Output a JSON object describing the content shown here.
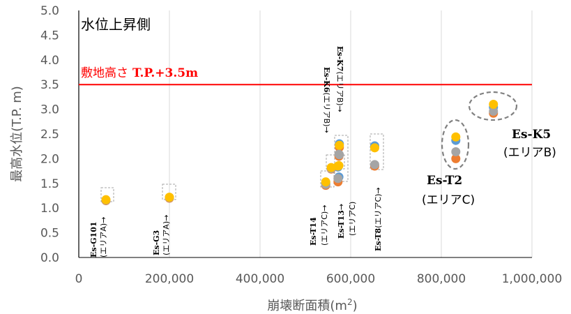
{
  "chart_data": {
    "type": "scatter",
    "panel_label": "水位上昇側",
    "xlabel": "崩壊断面積(m",
    "xlabel_sup": "2",
    "xlabel_tail": ")",
    "ylabel": "最高水位(T.P. m)",
    "xlim": [
      0,
      1000000
    ],
    "ylim": [
      0,
      5
    ],
    "x_ticks": [
      "0",
      "200,000",
      "400,000",
      "600,000",
      "800,000",
      "1,000,000"
    ],
    "y_ticks": [
      "0.0",
      "0.5",
      "1.0",
      "1.5",
      "2.0",
      "2.5",
      "3.0",
      "3.5",
      "4.0",
      "4.5",
      "5.0"
    ],
    "grid": "vertical",
    "reference_line": {
      "y": 3.5,
      "label_jp": "敷地高さ",
      "label_value": "T.P.+3.5m",
      "color": "#ff0000"
    },
    "series": [
      {
        "color": "#5b9bd5",
        "points": [
          [
            60000,
            1.16
          ],
          [
            200000,
            1.21
          ],
          [
            545000,
            1.5
          ],
          [
            557000,
            1.8
          ],
          [
            572000,
            1.83
          ],
          [
            575000,
            2.3
          ],
          [
            574000,
            1.63
          ],
          [
            653000,
            2.26
          ],
          [
            832000,
            2.37
          ],
          [
            915000,
            3.04
          ]
        ]
      },
      {
        "color": "#ed7d31",
        "points": [
          [
            60000,
            1.15
          ],
          [
            200000,
            1.2
          ],
          [
            545000,
            1.46
          ],
          [
            557000,
            1.79
          ],
          [
            572000,
            1.53
          ],
          [
            575000,
            2.23
          ],
          [
            574000,
            2.05
          ],
          [
            653000,
            1.85
          ],
          [
            832000,
            2.0
          ],
          [
            915000,
            2.92
          ]
        ]
      },
      {
        "color": "#a5a5a5",
        "points": [
          [
            60000,
            1.16
          ],
          [
            200000,
            1.21
          ],
          [
            545000,
            1.48
          ],
          [
            557000,
            1.8
          ],
          [
            572000,
            1.6
          ],
          [
            575000,
            2.08
          ],
          [
            574000,
            2.09
          ],
          [
            653000,
            1.88
          ],
          [
            832000,
            2.14
          ],
          [
            915000,
            2.96
          ]
        ]
      },
      {
        "color": "#ffc000",
        "points": [
          [
            60000,
            1.17
          ],
          [
            200000,
            1.22
          ],
          [
            545000,
            1.53
          ],
          [
            557000,
            1.82
          ],
          [
            572000,
            1.85
          ],
          [
            575000,
            2.27
          ],
          [
            574000,
            1.86
          ],
          [
            653000,
            2.22
          ],
          [
            832000,
            2.44
          ],
          [
            915000,
            3.1
          ]
        ]
      }
    ],
    "annotations": [
      {
        "name": "Es-G101",
        "area": "(エリアA)→"
      },
      {
        "name": "Es-G3",
        "area": "(エリアA)→"
      },
      {
        "name": "Es-T14",
        "area": "(エリアC)→"
      },
      {
        "name": "Es-K6",
        "area": "(エリアB)→"
      },
      {
        "name": "Es-K7",
        "area": "(エリアB)→"
      },
      {
        "name": "Es-T13",
        "area": "→",
        "area2": "(エリアC)"
      },
      {
        "name": "Es-T8",
        "area": "(エリアC)→"
      },
      {
        "name": "Es-T2",
        "area": "(エリアC)"
      },
      {
        "name": "Es-K5",
        "area": "(エリアB)"
      }
    ]
  }
}
